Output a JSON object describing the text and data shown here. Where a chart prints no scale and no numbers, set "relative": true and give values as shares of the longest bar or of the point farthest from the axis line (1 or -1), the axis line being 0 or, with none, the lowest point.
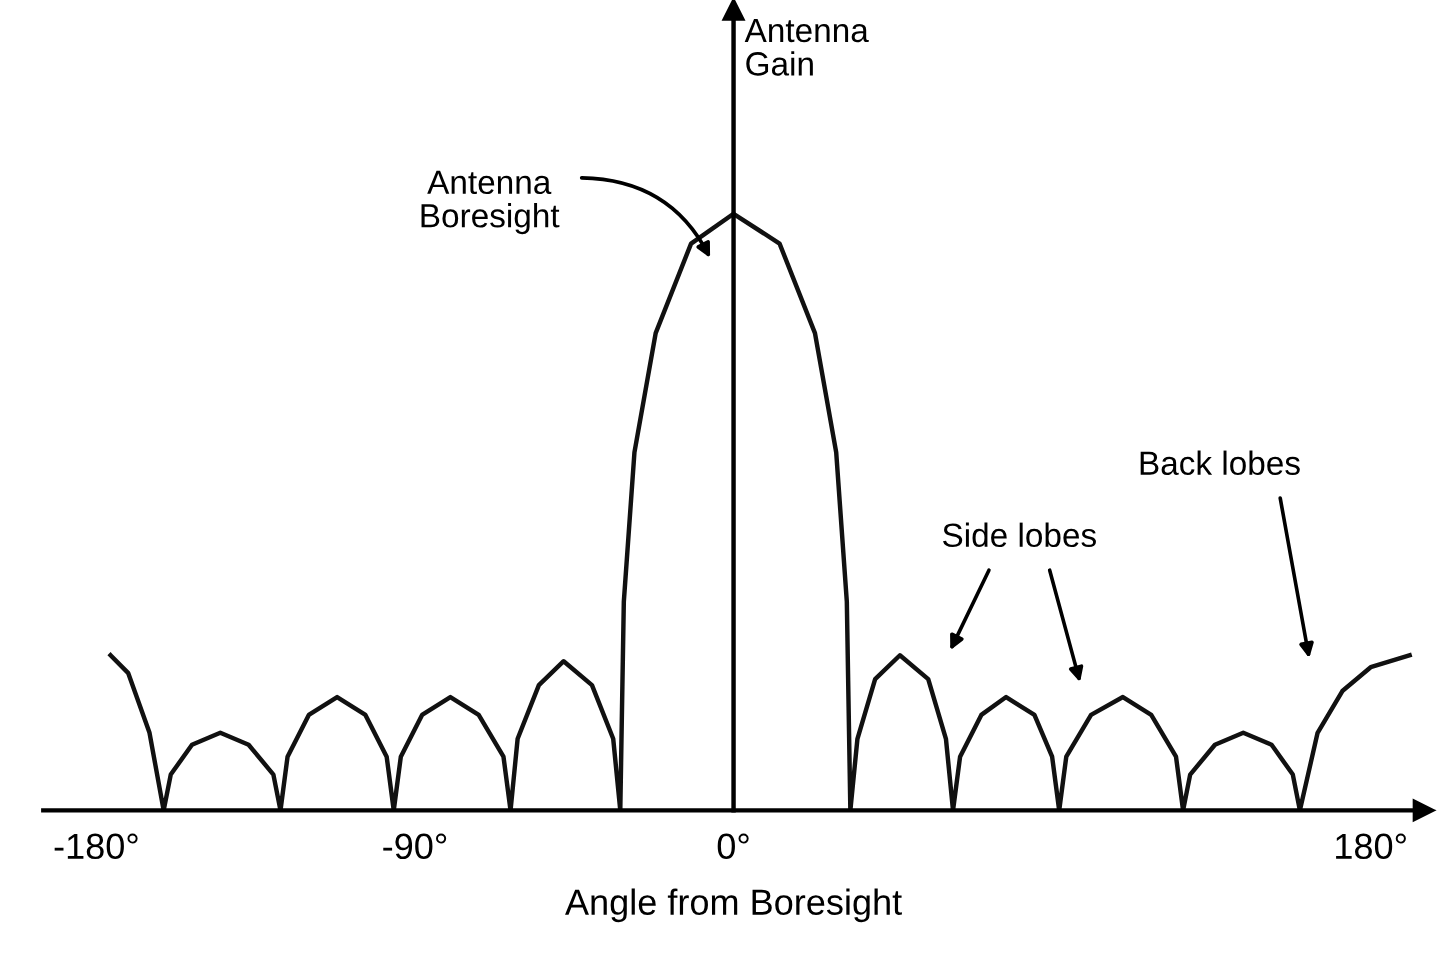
{
  "chart_data": {
    "type": "line",
    "relative": true,
    "xlabel": "Angle from Boresight",
    "ylabel": "Antenna\nGain",
    "xlim": [
      -195,
      195
    ],
    "xticks": [
      {
        "value": -180,
        "label": "-180°"
      },
      {
        "value": -90,
        "label": "-90°"
      },
      {
        "value": 0,
        "label": "0°"
      },
      {
        "value": 180,
        "label": "180°"
      }
    ],
    "series": [
      {
        "color": "#111111",
        "x": [
          -176,
          -171,
          -165,
          -161,
          -159,
          -153,
          -145,
          -137,
          -130,
          -128,
          -126,
          -120,
          -112,
          -104,
          -98,
          -96,
          -94,
          -88,
          -80,
          -72,
          -65,
          -63,
          -61,
          -55,
          -48,
          -40,
          -34,
          -32,
          -31,
          -28,
          -22,
          -12,
          0,
          13,
          23,
          29,
          32,
          33,
          35,
          40,
          47,
          55,
          60,
          62,
          64,
          70,
          77,
          85,
          90,
          92,
          94,
          101,
          110,
          118,
          125,
          127,
          129,
          136,
          144,
          152,
          158,
          160,
          165,
          172,
          180,
          191
        ],
        "values": [
          0.26,
          0.23,
          0.13,
          0,
          0.06,
          0.11,
          0.13,
          0.11,
          0.06,
          0,
          0.09,
          0.16,
          0.19,
          0.16,
          0.09,
          0,
          0.09,
          0.16,
          0.19,
          0.16,
          0.09,
          0,
          0.12,
          0.21,
          0.25,
          0.21,
          0.12,
          0,
          0.35,
          0.6,
          0.8,
          0.95,
          1,
          0.95,
          0.8,
          0.6,
          0.35,
          0,
          0.12,
          0.22,
          0.26,
          0.22,
          0.12,
          0,
          0.09,
          0.16,
          0.19,
          0.16,
          0.09,
          0,
          0.09,
          0.16,
          0.19,
          0.16,
          0.09,
          0,
          0.06,
          0.11,
          0.13,
          0.11,
          0.06,
          0,
          0.13,
          0.2,
          0.24,
          0.26
        ]
      }
    ],
    "annotations": [
      "Antenna\nBoresight",
      "Side lobes",
      "Back lobes"
    ],
    "marker": "none",
    "line_style": "solid"
  }
}
